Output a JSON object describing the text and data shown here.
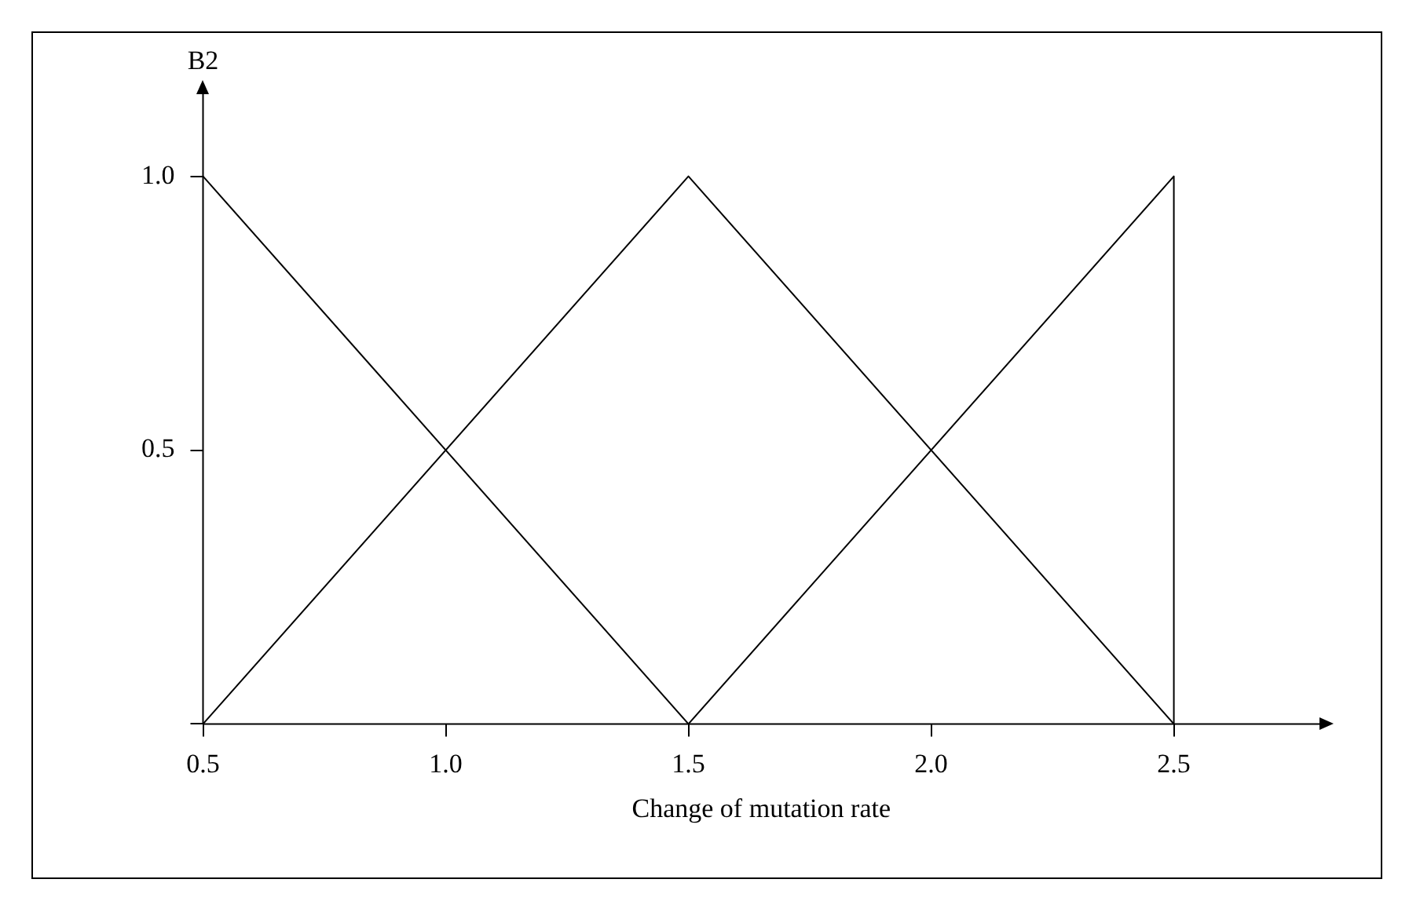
{
  "chart_data": {
    "type": "line",
    "xlabel": "Change of mutation rate",
    "ylabel": "B2",
    "xlim": [
      0.5,
      2.8
    ],
    "ylim": [
      0,
      1.15
    ],
    "xticks": [
      {
        "value": 0.5,
        "label": "0.5"
      },
      {
        "value": 1,
        "label": "1.0"
      },
      {
        "value": 1.5,
        "label": "1.5"
      },
      {
        "value": 2,
        "label": "2.0"
      },
      {
        "value": 2.5,
        "label": "2.5"
      }
    ],
    "yticks": [
      {
        "value": 0,
        "label": null
      },
      {
        "value": 0.5,
        "label": "0.5"
      },
      {
        "value": 1,
        "label": "1.0"
      }
    ],
    "series": [
      {
        "color": "#000000",
        "x": [
          0.5,
          1.5
        ],
        "values": [
          1,
          0
        ]
      },
      {
        "color": "#000000",
        "x": [
          0.5,
          1.5,
          2.5
        ],
        "values": [
          0,
          1,
          0
        ]
      },
      {
        "color": "#000000",
        "x": [
          1.5,
          2.5,
          2.5
        ],
        "values": [
          0,
          1,
          0
        ]
      }
    ],
    "grid": false,
    "legend": false,
    "marker": "none",
    "line_style": "solid"
  }
}
